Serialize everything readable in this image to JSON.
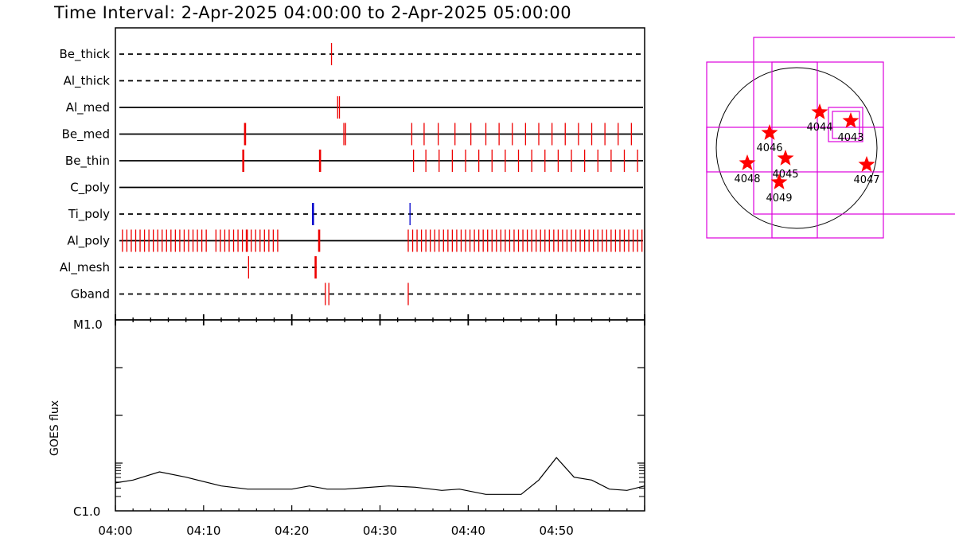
{
  "title": "Time Interval:  2-Apr-2025 04:00:00 to  2-Apr-2025 05:00:00",
  "colors": {
    "event": "#ee0000",
    "event_alt": "#0000cc",
    "map": "#dd00dd",
    "star": "#ff0000",
    "axis": "#000000"
  },
  "chart_data": [
    {
      "type": "timeline",
      "xlim": [
        "04:00",
        "05:00"
      ],
      "x_ticks": [
        "04:00",
        "04:10",
        "04:20",
        "04:30",
        "04:40",
        "04:50"
      ],
      "rows": [
        {
          "name": "Be_thick",
          "line": "dashed",
          "events": [
            {
              "t": "04:24.5",
              "color": "red"
            }
          ]
        },
        {
          "name": "Al_thick",
          "line": "dashed",
          "events": []
        },
        {
          "name": "Al_med",
          "line": "solid",
          "events": [
            {
              "t": "04:25.2",
              "color": "red"
            },
            {
              "t": "04:25.4",
              "color": "red"
            }
          ]
        },
        {
          "name": "Be_med",
          "line": "solid",
          "events": [
            {
              "t": "04:14.7",
              "color": "red",
              "bold": true
            },
            {
              "t": "04:25.9",
              "color": "red"
            },
            {
              "t": "04:26.1",
              "color": "red"
            },
            {
              "t": "04:33.6",
              "color": "red"
            },
            {
              "t": "04:35.0",
              "color": "red"
            },
            {
              "t": "04:36.6",
              "color": "red"
            },
            {
              "t": "04:38.5",
              "color": "red"
            },
            {
              "t": "04:40.3",
              "color": "red"
            },
            {
              "t": "04:42.0",
              "color": "red"
            },
            {
              "t": "04:43.5",
              "color": "red"
            },
            {
              "t": "04:45.0",
              "color": "red"
            },
            {
              "t": "04:46.5",
              "color": "red"
            },
            {
              "t": "04:48.0",
              "color": "red"
            },
            {
              "t": "04:49.5",
              "color": "red"
            },
            {
              "t": "04:51.0",
              "color": "red"
            },
            {
              "t": "04:52.5",
              "color": "red"
            },
            {
              "t": "04:54.0",
              "color": "red"
            },
            {
              "t": "04:55.5",
              "color": "red"
            },
            {
              "t": "04:57.0",
              "color": "red"
            },
            {
              "t": "04:58.5",
              "color": "red"
            }
          ]
        },
        {
          "name": "Be_thin",
          "line": "solid",
          "events": [
            {
              "t": "04:14.5",
              "color": "red",
              "bold": true
            },
            {
              "t": "04:23.2",
              "color": "red",
              "bold": true
            },
            {
              "t": "04:33.8",
              "color": "red"
            },
            {
              "t": "04:35.2",
              "color": "red"
            },
            {
              "t": "04:36.7",
              "color": "red"
            },
            {
              "t": "04:38.2",
              "color": "red"
            },
            {
              "t": "04:39.7",
              "color": "red"
            },
            {
              "t": "04:41.2",
              "color": "red"
            },
            {
              "t": "04:42.7",
              "color": "red"
            },
            {
              "t": "04:44.2",
              "color": "red"
            },
            {
              "t": "04:45.7",
              "color": "red"
            },
            {
              "t": "04:47.2",
              "color": "red"
            },
            {
              "t": "04:48.7",
              "color": "red"
            },
            {
              "t": "04:50.2",
              "color": "red"
            },
            {
              "t": "04:51.7",
              "color": "red"
            },
            {
              "t": "04:53.2",
              "color": "red"
            },
            {
              "t": "04:54.7",
              "color": "red"
            },
            {
              "t": "04:56.2",
              "color": "red"
            },
            {
              "t": "04:57.7",
              "color": "red"
            },
            {
              "t": "04:59.2",
              "color": "red"
            }
          ]
        },
        {
          "name": "C_poly",
          "line": "solid",
          "events": []
        },
        {
          "name": "Ti_poly",
          "line": "dashed",
          "events": [
            {
              "t": "04:22.4",
              "color": "blue",
              "bold": true
            },
            {
              "t": "04:33.4",
              "color": "blue"
            }
          ]
        },
        {
          "name": "Al_poly",
          "line": "solid",
          "events": [
            {
              "t": "04:00.8",
              "color": "red"
            },
            {
              "t": "04:01.3",
              "color": "red"
            },
            {
              "t": "04:01.8",
              "color": "red"
            },
            {
              "t": "04:02.3",
              "color": "red"
            },
            {
              "t": "04:02.8",
              "color": "red"
            },
            {
              "t": "04:03.3",
              "color": "red"
            },
            {
              "t": "04:03.8",
              "color": "red"
            },
            {
              "t": "04:04.3",
              "color": "red"
            },
            {
              "t": "04:04.8",
              "color": "red"
            },
            {
              "t": "04:05.3",
              "color": "red"
            },
            {
              "t": "04:05.8",
              "color": "red"
            },
            {
              "t": "04:06.3",
              "color": "red"
            },
            {
              "t": "04:06.8",
              "color": "red"
            },
            {
              "t": "04:07.3",
              "color": "red"
            },
            {
              "t": "04:07.8",
              "color": "red"
            },
            {
              "t": "04:08.3",
              "color": "red"
            },
            {
              "t": "04:08.8",
              "color": "red"
            },
            {
              "t": "04:09.3",
              "color": "red"
            },
            {
              "t": "04:09.8",
              "color": "red"
            },
            {
              "t": "04:10.3",
              "color": "red"
            },
            {
              "t": "04:11.4",
              "color": "red"
            },
            {
              "t": "04:11.9",
              "color": "red"
            },
            {
              "t": "04:12.4",
              "color": "red"
            },
            {
              "t": "04:12.9",
              "color": "red"
            },
            {
              "t": "04:13.4",
              "color": "red"
            },
            {
              "t": "04:13.9",
              "color": "red"
            },
            {
              "t": "04:14.4",
              "color": "red"
            },
            {
              "t": "04:14.9",
              "color": "red",
              "bold": true
            },
            {
              "t": "04:15.4",
              "color": "red"
            },
            {
              "t": "04:15.9",
              "color": "red"
            },
            {
              "t": "04:16.4",
              "color": "red"
            },
            {
              "t": "04:16.9",
              "color": "red"
            },
            {
              "t": "04:17.4",
              "color": "red"
            },
            {
              "t": "04:17.9",
              "color": "red"
            },
            {
              "t": "04:18.4",
              "color": "red"
            },
            {
              "t": "04:23.1",
              "color": "red",
              "bold": true
            },
            {
              "t": "04:33.2",
              "color": "red"
            },
            {
              "t": "04:33.7",
              "color": "red"
            },
            {
              "t": "04:34.2",
              "color": "red"
            },
            {
              "t": "04:34.7",
              "color": "red"
            },
            {
              "t": "04:35.2",
              "color": "red"
            },
            {
              "t": "04:35.7",
              "color": "red"
            },
            {
              "t": "04:36.2",
              "color": "red"
            },
            {
              "t": "04:36.7",
              "color": "red"
            },
            {
              "t": "04:37.2",
              "color": "red"
            },
            {
              "t": "04:37.7",
              "color": "red"
            },
            {
              "t": "04:38.2",
              "color": "red"
            },
            {
              "t": "04:38.7",
              "color": "red"
            },
            {
              "t": "04:39.2",
              "color": "red"
            },
            {
              "t": "04:39.7",
              "color": "red"
            },
            {
              "t": "04:40.2",
              "color": "red"
            },
            {
              "t": "04:40.7",
              "color": "red"
            },
            {
              "t": "04:41.2",
              "color": "red"
            },
            {
              "t": "04:41.7",
              "color": "red"
            },
            {
              "t": "04:42.2",
              "color": "red"
            },
            {
              "t": "04:42.7",
              "color": "red"
            },
            {
              "t": "04:43.2",
              "color": "red"
            },
            {
              "t": "04:43.7",
              "color": "red"
            },
            {
              "t": "04:44.2",
              "color": "red"
            },
            {
              "t": "04:44.7",
              "color": "red"
            },
            {
              "t": "04:45.2",
              "color": "red"
            },
            {
              "t": "04:45.7",
              "color": "red"
            },
            {
              "t": "04:46.2",
              "color": "red"
            },
            {
              "t": "04:46.7",
              "color": "red"
            },
            {
              "t": "04:47.2",
              "color": "red"
            },
            {
              "t": "04:47.7",
              "color": "red"
            },
            {
              "t": "04:48.2",
              "color": "red"
            },
            {
              "t": "04:48.7",
              "color": "red"
            },
            {
              "t": "04:49.2",
              "color": "red"
            },
            {
              "t": "04:49.7",
              "color": "red"
            },
            {
              "t": "04:50.2",
              "color": "red"
            },
            {
              "t": "04:50.7",
              "color": "red"
            },
            {
              "t": "04:51.2",
              "color": "red"
            },
            {
              "t": "04:51.7",
              "color": "red"
            },
            {
              "t": "04:52.2",
              "color": "red"
            },
            {
              "t": "04:52.7",
              "color": "red"
            },
            {
              "t": "04:53.2",
              "color": "red"
            },
            {
              "t": "04:53.7",
              "color": "red"
            },
            {
              "t": "04:54.2",
              "color": "red"
            },
            {
              "t": "04:54.7",
              "color": "red"
            },
            {
              "t": "04:55.2",
              "color": "red"
            },
            {
              "t": "04:55.7",
              "color": "red"
            },
            {
              "t": "04:56.2",
              "color": "red"
            },
            {
              "t": "04:56.7",
              "color": "red"
            },
            {
              "t": "04:57.2",
              "color": "red"
            },
            {
              "t": "04:57.7",
              "color": "red"
            },
            {
              "t": "04:58.2",
              "color": "red"
            },
            {
              "t": "04:58.7",
              "color": "red"
            },
            {
              "t": "04:59.2",
              "color": "red"
            },
            {
              "t": "04:59.7",
              "color": "red"
            }
          ]
        },
        {
          "name": "Al_mesh",
          "line": "dashed",
          "events": [
            {
              "t": "04:15.1",
              "color": "red"
            },
            {
              "t": "04:22.7",
              "color": "red",
              "bold": true
            }
          ]
        },
        {
          "name": "Gband",
          "line": "dashed",
          "events": [
            {
              "t": "04:23.8",
              "color": "red"
            },
            {
              "t": "04:24.2",
              "color": "red"
            },
            {
              "t": "04:33.2",
              "color": "red"
            }
          ]
        }
      ]
    },
    {
      "type": "line",
      "ylabel": "GOES flux",
      "y_ticks": [
        "M1.0",
        "C1.0"
      ],
      "ylim": [
        "C1.0",
        "M1.0"
      ],
      "yscale": "log",
      "x_ticks": [
        "04:00",
        "04:10",
        "04:20",
        "04:30",
        "04:40",
        "04:50"
      ],
      "series": [
        {
          "x": [
            "04:00",
            "04:02",
            "04:05",
            "04:08",
            "04:12",
            "04:15",
            "04:20",
            "04:22",
            "04:24",
            "04:26",
            "04:28",
            "04:31",
            "04:34",
            "04:37",
            "04:39",
            "04:42",
            "04:46",
            "04:48",
            "04:50",
            "04:52",
            "04:54",
            "04:56",
            "04:58",
            "05:00"
          ],
          "y": [
            "C1.4",
            "C1.45",
            "C1.6",
            "C1.5",
            "C1.35",
            "C1.3",
            "C1.3",
            "C1.35",
            "C1.3",
            "C1.3",
            "C1.32",
            "C1.35",
            "C1.33",
            "C1.28",
            "C1.3",
            "C1.22",
            "C1.22",
            "C1.45",
            "C1.9",
            "C1.5",
            "C1.45",
            "C1.3",
            "C1.28",
            "C1.35"
          ]
        }
      ]
    },
    {
      "type": "map",
      "active_regions": [
        {
          "number": "4044"
        },
        {
          "number": "4043"
        },
        {
          "number": "4046"
        },
        {
          "number": "4045"
        },
        {
          "number": "4048"
        },
        {
          "number": "4049"
        },
        {
          "number": "4047"
        }
      ]
    }
  ]
}
